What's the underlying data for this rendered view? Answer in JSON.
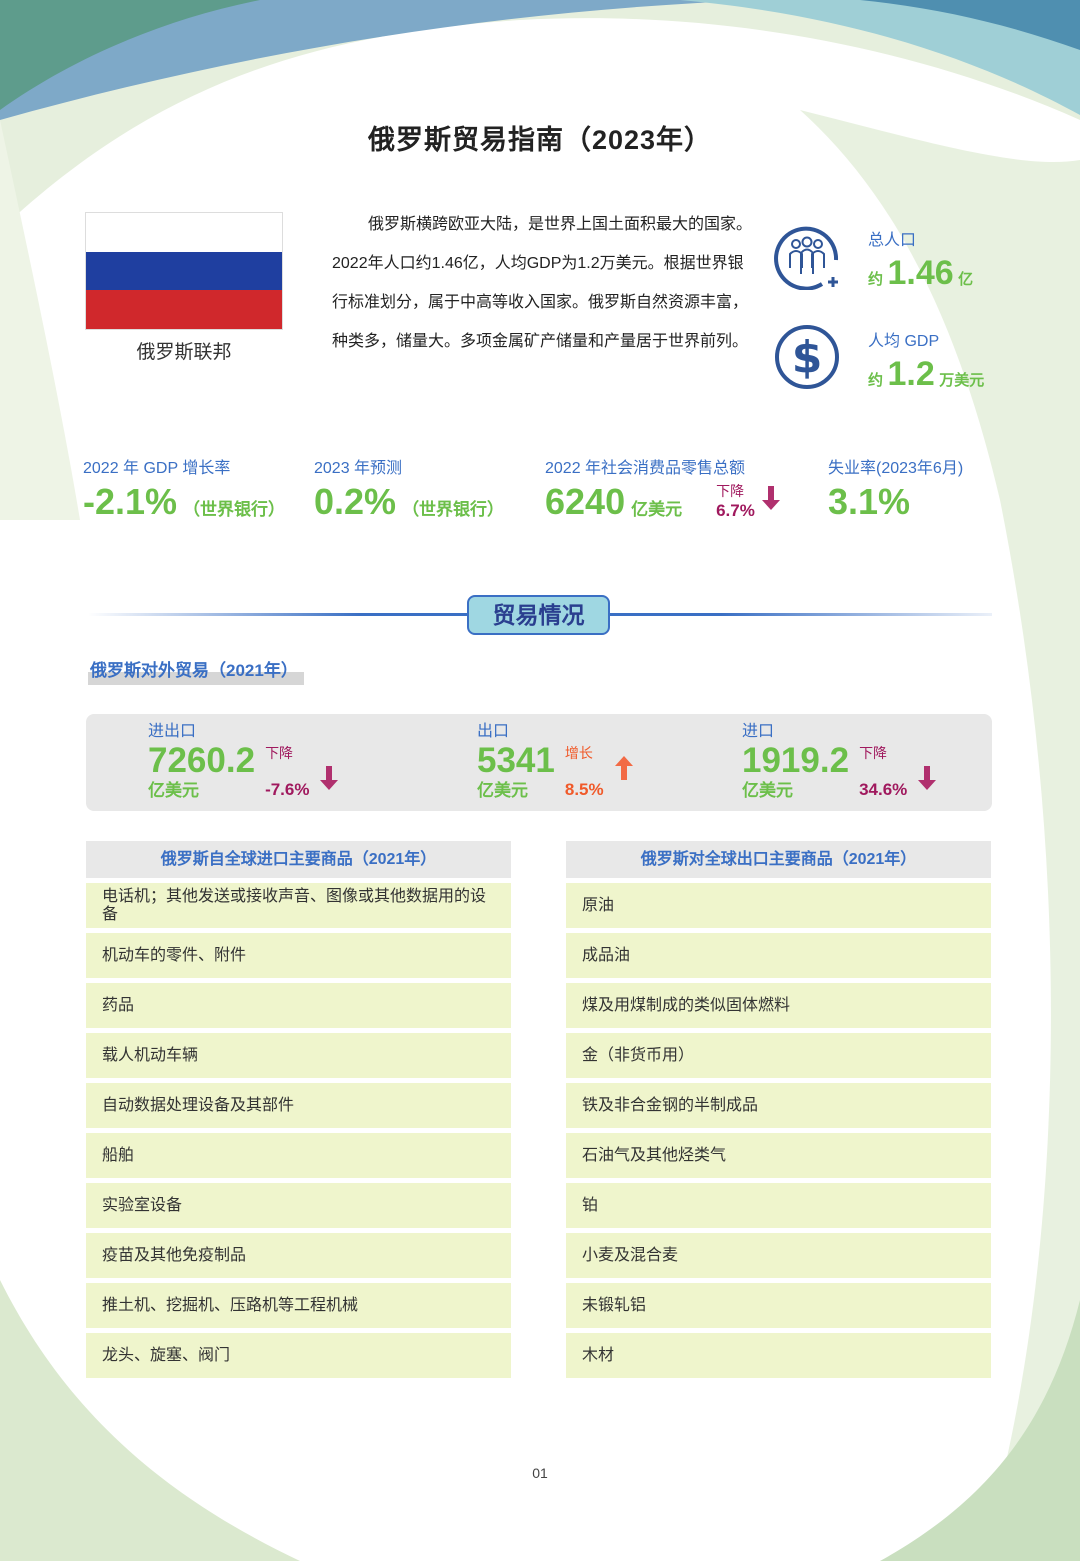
{
  "title": "俄罗斯贸易指南（2023年）",
  "flag": {
    "name": "俄罗斯联邦",
    "colors": [
      "#ffffff",
      "#1f3fa0",
      "#d0282c"
    ]
  },
  "intro": "俄罗斯横跨欧亚大陆，是世界上国土面积最大的国家。2022年人口约1.46亿，人均GDP为1.2万美元。根据世界银行标准划分，属于中高等收入国家。俄罗斯自然资源丰富，种类多，储量大。多项金属矿产储量和产量居于世界前列。",
  "stats": [
    {
      "icon": "people-plus-icon",
      "label": "总人口",
      "prefix": "约",
      "value": "1.46",
      "unit": "亿"
    },
    {
      "icon": "dollar-icon",
      "label": "人均 GDP",
      "prefix": "约",
      "value": "1.2",
      "unit": "万美元"
    }
  ],
  "kpis": [
    {
      "label": "2022 年 GDP 增长率",
      "value": "-2.1%",
      "note": "（世界银行）"
    },
    {
      "label": "2023 年预测",
      "value": "0.2%",
      "note": "（世界银行）"
    },
    {
      "label": "2022 年社会消费品零售总额",
      "value": "6240",
      "unit": "亿美元",
      "change_label": "下降",
      "change": "6.7%",
      "direction": "down"
    },
    {
      "label": "失业率(2023年6月)",
      "value": "3.1%"
    }
  ],
  "section_title": "贸易情况",
  "trade_subtitle": "俄罗斯对外贸易（2021年）",
  "trade": [
    {
      "label": "进出口",
      "value": "7260.2",
      "unit": "亿美元",
      "change_label": "下降",
      "change": "-7.6%",
      "direction": "down"
    },
    {
      "label": "出口",
      "value": "5341",
      "unit": "亿美元",
      "change_label": "增长",
      "change": "8.5%",
      "direction": "up"
    },
    {
      "label": "进口",
      "value": "1919.2",
      "unit": "亿美元",
      "change_label": "下降",
      "change": "34.6%",
      "direction": "down"
    }
  ],
  "imports": {
    "title": "俄罗斯自全球进口主要商品（2021年）",
    "items": [
      "电话机；其他发送或接收声音、图像或其他数据用的设备",
      "机动车的零件、附件",
      "药品",
      "载人机动车辆",
      "自动数据处理设备及其部件",
      "船舶",
      "实验室设备",
      "疫苗及其他免疫制品",
      "推土机、挖掘机、压路机等工程机械",
      "龙头、旋塞、阀门"
    ]
  },
  "exports": {
    "title": "俄罗斯对全球出口主要商品（2021年）",
    "items": [
      "原油",
      "成品油",
      "煤及用煤制成的类似固体燃料",
      "金（非货币用）",
      "铁及非合金钢的半制成品",
      "石油气及其他烃类气",
      "铂",
      "小麦及混合麦",
      "未锻轧铝",
      "木材"
    ]
  },
  "page_number": "01",
  "colors": {
    "blue": "#3a6fc4",
    "green": "#6cbf4a",
    "down": "#a0195e",
    "up": "#f05a2a",
    "row_bg": "#eff5cc",
    "header_bg": "#e8e8e8"
  }
}
